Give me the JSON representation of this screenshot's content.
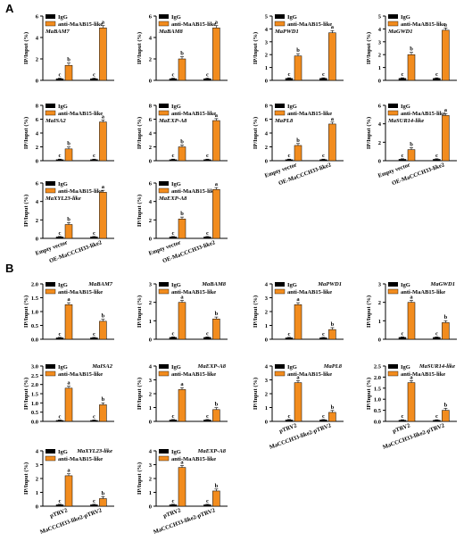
{
  "panel_labels": {
    "a": "A",
    "b": "B"
  },
  "colors": {
    "igg": "#000000",
    "anti": "#f28c1e"
  },
  "legend": {
    "igg": "IgG",
    "anti": "anti-MaAB15-like"
  },
  "ylabel": "IP/Input (%)",
  "chart_data": [
    {
      "type": "bar",
      "title": "MaBAM7",
      "categories": [
        "Empty vector",
        "OE-MaCCCH33-like2"
      ],
      "ylim": [
        0,
        6
      ],
      "yticks": [
        0,
        2,
        4,
        6
      ],
      "ylabel": "IP/Input (%)",
      "series": [
        {
          "name": "IgG",
          "values": [
            0.15,
            0.15
          ],
          "sig": [
            "c",
            "c"
          ]
        },
        {
          "name": "anti-MaAB15-like",
          "values": [
            1.4,
            4.9
          ],
          "sig": [
            "b",
            "a"
          ]
        }
      ]
    },
    {
      "type": "bar",
      "title": "MaBAM8",
      "categories": [
        "Empty vector",
        "OE-MaCCCH33-like2"
      ],
      "ylim": [
        0,
        6
      ],
      "yticks": [
        0,
        2,
        4,
        6
      ],
      "ylabel": "IP/Input (%)",
      "series": [
        {
          "name": "IgG",
          "values": [
            0.15,
            0.15
          ],
          "sig": [
            "c",
            "c"
          ]
        },
        {
          "name": "anti-MaAB15-like",
          "values": [
            2.0,
            4.9
          ],
          "sig": [
            "b",
            "a"
          ]
        }
      ]
    },
    {
      "type": "bar",
      "title": "MaPWD1",
      "categories": [
        "Empty vector",
        "OE-MaCCCH33-like2"
      ],
      "ylim": [
        0,
        5
      ],
      "yticks": [
        0,
        1,
        2,
        3,
        4,
        5
      ],
      "ylabel": "IP/Input (%)",
      "series": [
        {
          "name": "IgG",
          "values": [
            0.15,
            0.15
          ],
          "sig": [
            "c",
            "c"
          ]
        },
        {
          "name": "anti-MaAB15-like",
          "values": [
            1.9,
            3.7
          ],
          "sig": [
            "b",
            "a"
          ]
        }
      ]
    },
    {
      "type": "bar",
      "title": "MaGWD1",
      "categories": [
        "Empty vector",
        "OE-MaCCCH33-like2"
      ],
      "ylim": [
        0,
        5
      ],
      "yticks": [
        0,
        1,
        2,
        3,
        4,
        5
      ],
      "ylabel": "IP/Input (%)",
      "series": [
        {
          "name": "IgG",
          "values": [
            0.15,
            0.15
          ],
          "sig": [
            "c",
            "c"
          ]
        },
        {
          "name": "anti-MaAB15-like",
          "values": [
            2.0,
            3.9
          ],
          "sig": [
            "b",
            "a"
          ]
        }
      ]
    },
    {
      "type": "bar",
      "title": "MaISA2",
      "categories": [
        "Empty vector",
        "OE-MaCCCH33-like2"
      ],
      "ylim": [
        0,
        8
      ],
      "yticks": [
        0,
        2,
        4,
        6,
        8
      ],
      "ylabel": "IP/Input (%)",
      "series": [
        {
          "name": "IgG",
          "values": [
            0.15,
            0.15
          ],
          "sig": [
            "c",
            "c"
          ]
        },
        {
          "name": "anti-MaAB15-like",
          "values": [
            1.7,
            5.6
          ],
          "sig": [
            "b",
            "a"
          ]
        }
      ]
    },
    {
      "type": "bar",
      "title": "MaEXP-A8",
      "categories": [
        "Empty vector",
        "OE-MaCCCH33-like2"
      ],
      "ylim": [
        0,
        8
      ],
      "yticks": [
        0,
        2,
        4,
        6,
        8
      ],
      "ylabel": "IP/Input (%)",
      "series": [
        {
          "name": "IgG",
          "values": [
            0.15,
            0.15
          ],
          "sig": [
            "c",
            "c"
          ]
        },
        {
          "name": "anti-MaAB15-like",
          "values": [
            2.0,
            5.8
          ],
          "sig": [
            "b",
            "a"
          ]
        }
      ]
    },
    {
      "type": "bar",
      "title": "MaPL8",
      "categories": [
        "Empty vector",
        "OE-MaCCCH33-like2"
      ],
      "ylim": [
        0,
        8
      ],
      "yticks": [
        0,
        2,
        4,
        6,
        8
      ],
      "ylabel": "IP/Input (%)",
      "xlabels_shown": true,
      "series": [
        {
          "name": "IgG",
          "values": [
            0.15,
            0.15
          ],
          "sig": [
            "c",
            "c"
          ]
        },
        {
          "name": "anti-MaAB15-like",
          "values": [
            2.2,
            5.3
          ],
          "sig": [
            "b",
            "a"
          ]
        }
      ]
    },
    {
      "type": "bar",
      "title": "MaSUR14-like",
      "categories": [
        "Empty vector",
        "OE-MaCCCH33-like2"
      ],
      "ylim": [
        0,
        6
      ],
      "yticks": [
        0,
        2,
        4,
        6
      ],
      "ylabel": "IP/Input (%)",
      "xlabels_shown": true,
      "series": [
        {
          "name": "IgG",
          "values": [
            0.15,
            0.15
          ],
          "sig": [
            "c",
            "c"
          ]
        },
        {
          "name": "anti-MaAB15-like",
          "values": [
            1.2,
            4.9
          ],
          "sig": [
            "b",
            "a"
          ]
        }
      ]
    },
    {
      "type": "bar",
      "title": "MaXYL23-like",
      "categories": [
        "Empty vector",
        "OE-MaCCCH33-like2"
      ],
      "ylim": [
        0,
        6
      ],
      "yticks": [
        0,
        2,
        4,
        6
      ],
      "ylabel": "IP/Input (%)",
      "xlabels_shown": true,
      "series": [
        {
          "name": "IgG",
          "values": [
            0.15,
            0.15
          ],
          "sig": [
            "c",
            "c"
          ]
        },
        {
          "name": "anti-MaAB15-like",
          "values": [
            1.5,
            5.0
          ],
          "sig": [
            "b",
            "a"
          ]
        }
      ]
    },
    {
      "type": "bar",
      "title": "MaEXP-A8",
      "categories": [
        "Empty vector",
        "OE-MaCCCH33-like2"
      ],
      "ylim": [
        0,
        6
      ],
      "yticks": [
        0,
        2,
        4,
        6
      ],
      "ylabel": "IP/Input (%)",
      "xlabels_shown": true,
      "series": [
        {
          "name": "IgG",
          "values": [
            0.15,
            0.15
          ],
          "sig": [
            "c",
            "c"
          ]
        },
        {
          "name": "anti-MaAB15-like",
          "values": [
            2.1,
            5.3
          ],
          "sig": [
            "b",
            "a"
          ]
        }
      ]
    },
    {
      "type": "bar",
      "title": "MaBAM7",
      "categories": [
        "pTRV2",
        "MaCCCH33-like2-pTRV2"
      ],
      "ylim": [
        0,
        2.0
      ],
      "yticks": [
        0,
        0.5,
        1.0,
        1.5,
        2.0
      ],
      "ylabel": "IP/Input (%)",
      "series": [
        {
          "name": "IgG",
          "values": [
            0.05,
            0.05
          ],
          "sig": [
            "c",
            "c"
          ]
        },
        {
          "name": "anti-MaAB15-like",
          "values": [
            1.25,
            0.65
          ],
          "sig": [
            "a",
            "b"
          ]
        }
      ]
    },
    {
      "type": "bar",
      "title": "MaBAM8",
      "categories": [
        "pTRV2",
        "MaCCCH33-like2-pTRV2"
      ],
      "ylim": [
        0,
        3
      ],
      "yticks": [
        0,
        1,
        2,
        3
      ],
      "ylabel": "IP/Input (%)",
      "series": [
        {
          "name": "IgG",
          "values": [
            0.1,
            0.1
          ],
          "sig": [
            "c",
            "c"
          ]
        },
        {
          "name": "anti-MaAB15-like",
          "values": [
            2.0,
            1.1
          ],
          "sig": [
            "a",
            "b"
          ]
        }
      ]
    },
    {
      "type": "bar",
      "title": "MaPWD1",
      "categories": [
        "pTRV2",
        "MaCCCH33-like2-pTRV2"
      ],
      "ylim": [
        0,
        4
      ],
      "yticks": [
        0,
        1,
        2,
        3,
        4
      ],
      "ylabel": "IP/Input (%)",
      "series": [
        {
          "name": "IgG",
          "values": [
            0.1,
            0.1
          ],
          "sig": [
            "c",
            "c"
          ]
        },
        {
          "name": "anti-MaAB15-like",
          "values": [
            2.5,
            0.7
          ],
          "sig": [
            "a",
            "b"
          ]
        }
      ]
    },
    {
      "type": "bar",
      "title": "MaGWD1",
      "categories": [
        "pTRV2",
        "MaCCCH33-like2-pTRV2"
      ],
      "ylim": [
        0,
        3
      ],
      "yticks": [
        0,
        1,
        2,
        3
      ],
      "ylabel": "IP/Input (%)",
      "series": [
        {
          "name": "IgG",
          "values": [
            0.1,
            0.1
          ],
          "sig": [
            "c",
            "c"
          ]
        },
        {
          "name": "anti-MaAB15-like",
          "values": [
            2.0,
            0.9
          ],
          "sig": [
            "a",
            "b"
          ]
        }
      ]
    },
    {
      "type": "bar",
      "title": "MaISA2",
      "categories": [
        "pTRV2",
        "MaCCCH33-like2-pTRV2"
      ],
      "ylim": [
        0,
        3.0
      ],
      "yticks": [
        0,
        0.5,
        1.0,
        1.5,
        2.0,
        2.5,
        3.0
      ],
      "ylabel": "IP/Input (%)",
      "series": [
        {
          "name": "IgG",
          "values": [
            0.05,
            0.05
          ],
          "sig": [
            "c",
            "c"
          ]
        },
        {
          "name": "anti-MaAB15-like",
          "values": [
            1.8,
            0.9
          ],
          "sig": [
            "a",
            "b"
          ]
        }
      ]
    },
    {
      "type": "bar",
      "title": "MaEXP-A8",
      "categories": [
        "pTRV2",
        "MaCCCH33-like2-pTRV2"
      ],
      "ylim": [
        0,
        4
      ],
      "yticks": [
        0,
        1,
        2,
        3,
        4
      ],
      "ylabel": "IP/Input (%)",
      "series": [
        {
          "name": "IgG",
          "values": [
            0.1,
            0.1
          ],
          "sig": [
            "c",
            "c"
          ]
        },
        {
          "name": "anti-MaAB15-like",
          "values": [
            2.3,
            0.85
          ],
          "sig": [
            "a",
            "b"
          ]
        }
      ]
    },
    {
      "type": "bar",
      "title": "MaPL8",
      "categories": [
        "pTRV2",
        "MaCCCH33-like2-pTRV2"
      ],
      "ylim": [
        0,
        4
      ],
      "yticks": [
        0,
        1,
        2,
        3,
        4
      ],
      "ylabel": "IP/Input (%)",
      "series": [
        {
          "name": "IgG",
          "values": [
            0.1,
            0.1
          ],
          "sig": [
            "c",
            "c"
          ]
        },
        {
          "name": "anti-MaAB15-like",
          "values": [
            2.8,
            0.65
          ],
          "sig": [
            "a",
            "b"
          ]
        }
      ]
    },
    {
      "type": "bar",
      "title": "MaSUR14-like",
      "categories": [
        "pTRV2",
        "MaCCCH33-like2-pTRV2"
      ],
      "ylim": [
        0,
        2.5
      ],
      "yticks": [
        0,
        0.5,
        1.0,
        1.5,
        2.0,
        2.5
      ],
      "ylabel": "IP/Input (%)",
      "series": [
        {
          "name": "IgG",
          "values": [
            0.05,
            0.05
          ],
          "sig": [
            "c",
            "c"
          ]
        },
        {
          "name": "anti-MaAB15-like",
          "values": [
            1.75,
            0.5
          ],
          "sig": [
            "a",
            "b"
          ]
        }
      ]
    },
    {
      "type": "bar",
      "title": "MaXYL23-like",
      "categories": [
        "pTRV2",
        "MaCCCH33-like2-pTRV2"
      ],
      "ylim": [
        0,
        4
      ],
      "yticks": [
        0,
        1,
        2,
        3,
        4
      ],
      "ylabel": "IP/Input (%)",
      "series": [
        {
          "name": "IgG",
          "values": [
            0.1,
            0.1
          ],
          "sig": [
            "c",
            "c"
          ]
        },
        {
          "name": "anti-MaAB15-like",
          "values": [
            2.2,
            0.55
          ],
          "sig": [
            "a",
            "b"
          ]
        }
      ]
    },
    {
      "type": "bar",
      "title": "MaEXP-A8",
      "categories": [
        "pTRV2",
        "MaCCCH33-like2-pTRV2"
      ],
      "ylim": [
        0,
        4
      ],
      "yticks": [
        0,
        1,
        2,
        3,
        4
      ],
      "ylabel": "IP/Input (%)",
      "series": [
        {
          "name": "IgG",
          "values": [
            0.1,
            0.1
          ],
          "sig": [
            "c",
            "c"
          ]
        },
        {
          "name": "anti-MaAB15-like",
          "values": [
            2.8,
            1.1
          ],
          "sig": [
            "a",
            "b"
          ]
        }
      ]
    }
  ]
}
